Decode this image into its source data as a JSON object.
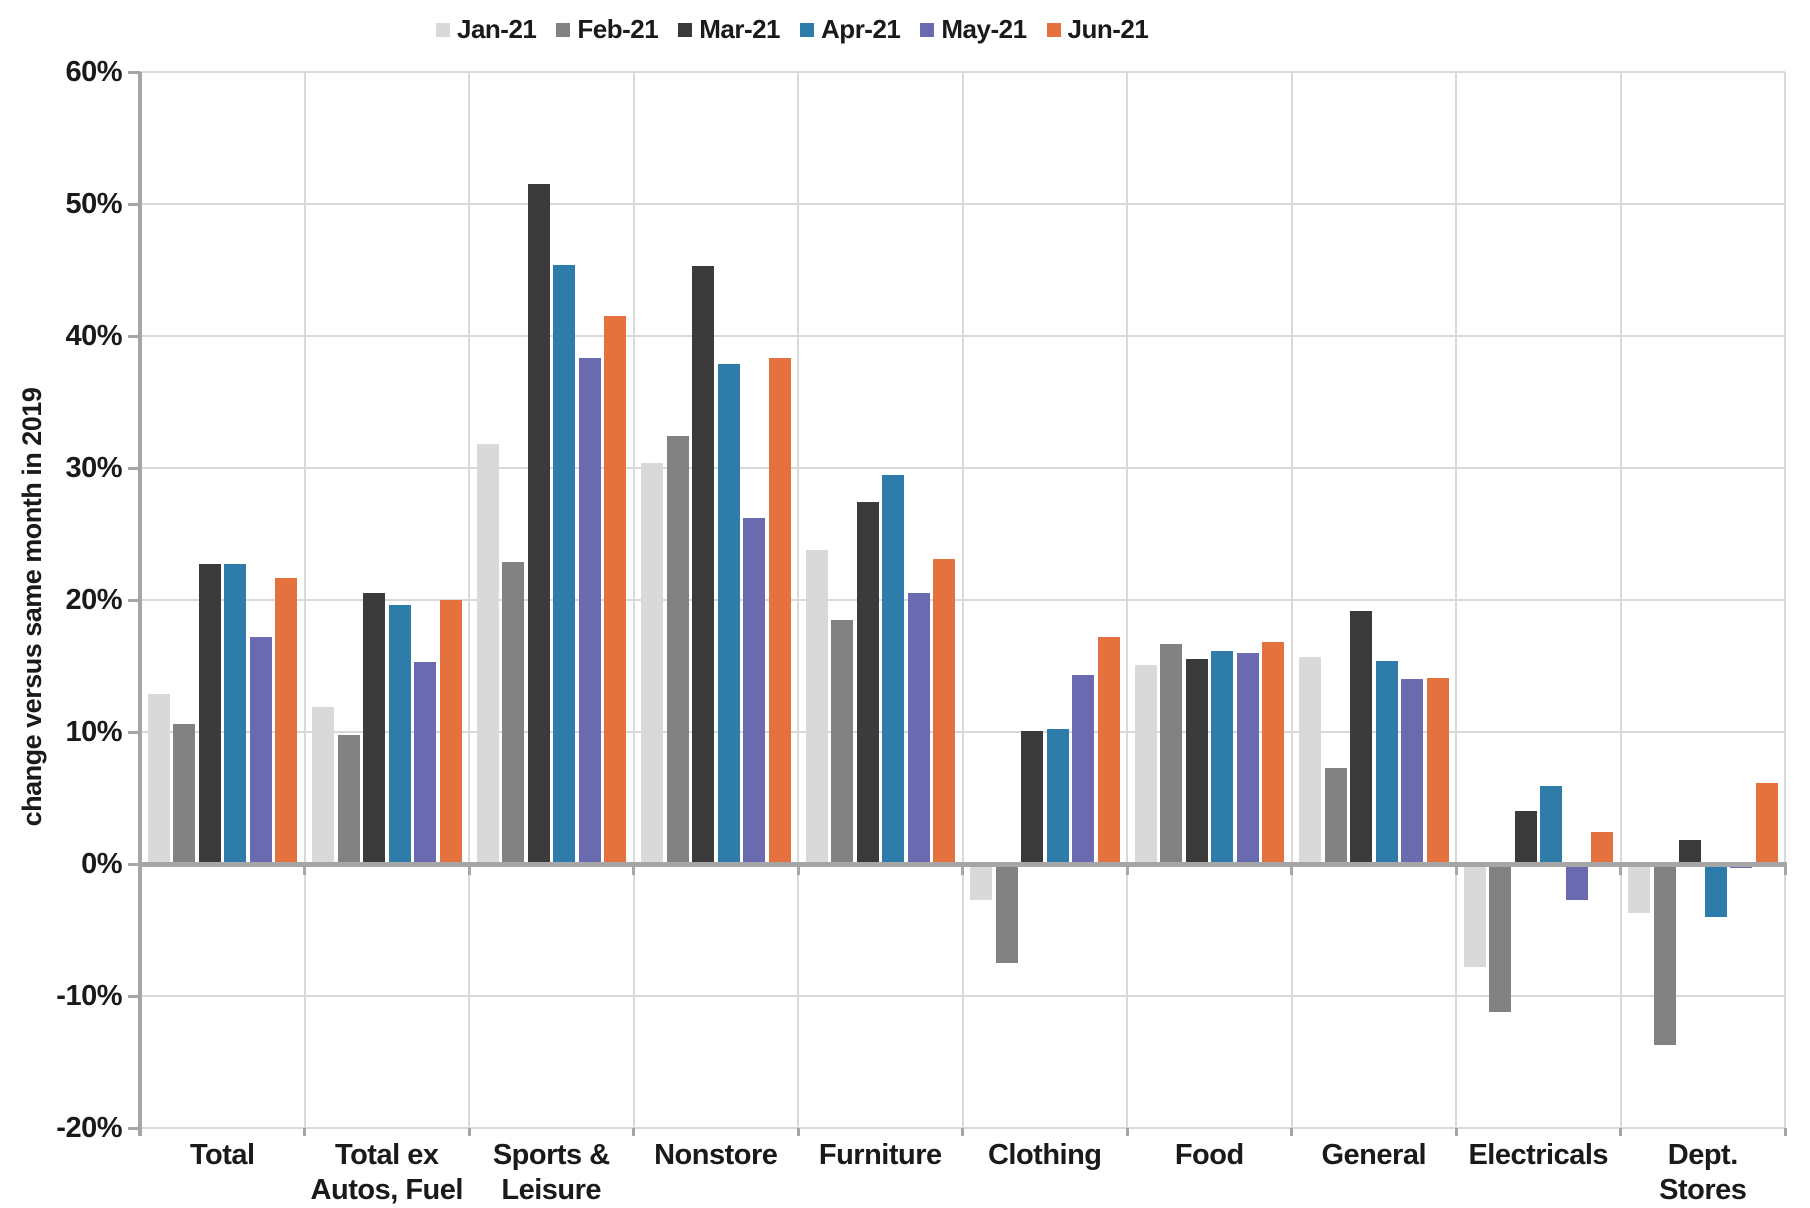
{
  "chart_data": {
    "type": "bar",
    "title": "",
    "xlabel": "",
    "ylabel": "change versus same month in 2019",
    "ylim": [
      -20,
      60
    ],
    "ytick_step": 10,
    "ytick_labels": [
      "60%",
      "50%",
      "40%",
      "30%",
      "20%",
      "10%",
      "0%",
      "-10%",
      "-20%"
    ],
    "ytick_values": [
      60,
      50,
      40,
      30,
      20,
      10,
      0,
      -10,
      -20
    ],
    "grid": true,
    "legend_position": "top",
    "categories": [
      "Total",
      "Total ex\nAutos, Fuel",
      "Sports &\nLeisure",
      "Nonstore",
      "Furniture",
      "Clothing",
      "Food",
      "General",
      "Electricals",
      "Dept.\nStores"
    ],
    "series": [
      {
        "name": "Jan-21",
        "color": "#d9d9d9",
        "values": [
          12.9,
          11.9,
          31.8,
          30.4,
          23.8,
          -2.7,
          15.1,
          15.7,
          -7.8,
          -3.7
        ]
      },
      {
        "name": "Feb-21",
        "color": "#828282",
        "values": [
          10.6,
          9.8,
          22.9,
          32.4,
          18.5,
          -7.5,
          16.7,
          7.3,
          -11.2,
          -13.7
        ]
      },
      {
        "name": "Mar-21",
        "color": "#3b3b3b",
        "values": [
          22.7,
          20.5,
          51.5,
          45.3,
          27.4,
          10.1,
          15.5,
          19.2,
          4.0,
          1.8
        ]
      },
      {
        "name": "Apr-21",
        "color": "#2e7ca9",
        "values": [
          22.7,
          19.6,
          45.4,
          37.9,
          29.5,
          10.2,
          16.1,
          15.4,
          5.9,
          -4.0
        ]
      },
      {
        "name": "May-21",
        "color": "#6a6ab1",
        "values": [
          17.2,
          15.3,
          38.3,
          26.2,
          20.5,
          14.3,
          16.0,
          14.0,
          -2.7,
          -0.3
        ]
      },
      {
        "name": "Jun-21",
        "color": "#e4713e",
        "values": [
          21.7,
          20.0,
          41.5,
          38.3,
          23.1,
          17.2,
          16.8,
          14.1,
          2.4,
          6.1
        ]
      }
    ],
    "colors": {
      "gridline": "#d9d9d9",
      "axis": "#a6a6a6",
      "text": "#1a1a1a",
      "background": "#ffffff"
    }
  }
}
